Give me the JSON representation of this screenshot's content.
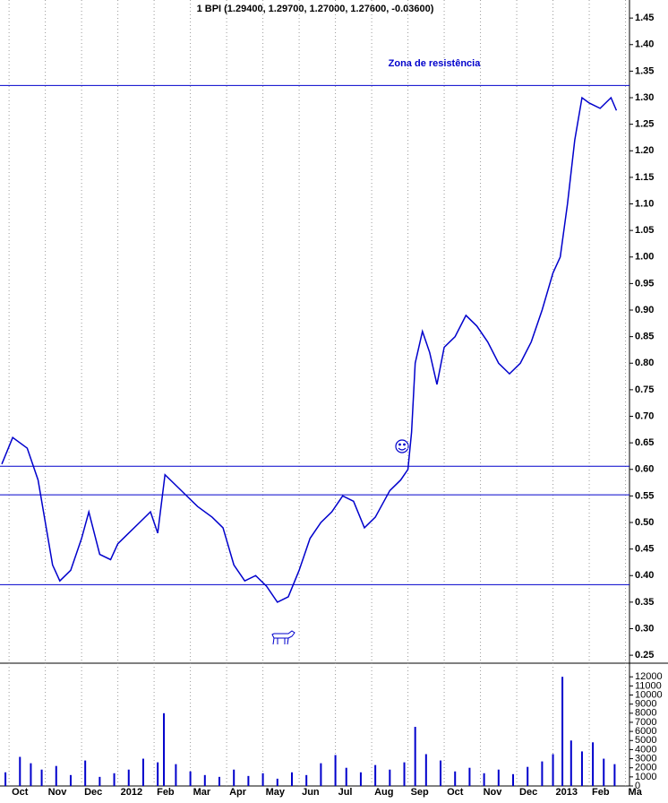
{
  "chart_data": [
    {
      "type": "line",
      "title": "1 BPI (1.29400, 1.29700, 1.27000, 1.27600, -0.03600)",
      "annotations": [
        "Zona de resistência"
      ],
      "x": [
        -0.2,
        0.1,
        0.5,
        0.8,
        1.0,
        1.2,
        1.4,
        1.7,
        2.0,
        2.2,
        2.5,
        2.8,
        3.0,
        3.3,
        3.6,
        3.9,
        4.1,
        4.3,
        4.6,
        4.9,
        5.2,
        5.6,
        5.9,
        6.2,
        6.5,
        6.8,
        7.1,
        7.4,
        7.7,
        8.0,
        8.3,
        8.6,
        8.9,
        9.2,
        9.5,
        9.8,
        10.1,
        10.5,
        10.8,
        11.0,
        11.1,
        11.2,
        11.4,
        11.6,
        11.8,
        12.0,
        12.3,
        12.6,
        12.9,
        13.2,
        13.5,
        13.8,
        14.1,
        14.4,
        14.7,
        15.0,
        15.2,
        15.4,
        15.6,
        15.8,
        16.0,
        16.3,
        16.6,
        16.75
      ],
      "series": [
        {
          "color": "#0000cc",
          "values": [
            0.61,
            0.66,
            0.64,
            0.58,
            0.5,
            0.42,
            0.39,
            0.41,
            0.47,
            0.52,
            0.44,
            0.43,
            0.46,
            0.48,
            0.5,
            0.52,
            0.48,
            0.59,
            0.57,
            0.55,
            0.53,
            0.51,
            0.49,
            0.42,
            0.39,
            0.4,
            0.38,
            0.35,
            0.36,
            0.41,
            0.47,
            0.5,
            0.52,
            0.55,
            0.54,
            0.49,
            0.51,
            0.56,
            0.58,
            0.6,
            0.67,
            0.8,
            0.86,
            0.82,
            0.76,
            0.83,
            0.85,
            0.89,
            0.87,
            0.84,
            0.8,
            0.78,
            0.8,
            0.84,
            0.9,
            0.97,
            1.0,
            1.1,
            1.22,
            1.3,
            1.29,
            1.28,
            1.3,
            1.276
          ]
        }
      ],
      "hlines": [
        1.323,
        0.606,
        0.552,
        0.383
      ],
      "hline_color": "#0000cc",
      "xlim": [
        -0.25,
        17.11
      ],
      "xticks": [
        {
          "value": 0,
          "label": "Oct"
        },
        {
          "value": 1,
          "label": "Nov"
        },
        {
          "value": 2,
          "label": "Dec"
        },
        {
          "value": 3,
          "label": "2012"
        },
        {
          "value": 4,
          "label": "Feb"
        },
        {
          "value": 5,
          "label": "Mar"
        },
        {
          "value": 6,
          "label": "Apr"
        },
        {
          "value": 7,
          "label": "May"
        },
        {
          "value": 8,
          "label": "Jun"
        },
        {
          "value": 9,
          "label": "Jul"
        },
        {
          "value": 10,
          "label": "Aug"
        },
        {
          "value": 11,
          "label": "Sep"
        },
        {
          "value": 12,
          "label": "Oct"
        },
        {
          "value": 13,
          "label": "Nov"
        },
        {
          "value": 14,
          "label": "Dec"
        },
        {
          "value": 15,
          "label": "2013"
        },
        {
          "value": 16,
          "label": "Feb"
        },
        {
          "value": 17,
          "label": "Ma"
        }
      ],
      "ylim": [
        0.235,
        1.484
      ],
      "yticks": [
        {
          "value": 0.25,
          "label": "0.25"
        },
        {
          "value": 0.3,
          "label": "0.30"
        },
        {
          "value": 0.35,
          "label": "0.35"
        },
        {
          "value": 0.4,
          "label": "0.40"
        },
        {
          "value": 0.45,
          "label": "0.45"
        },
        {
          "value": 0.5,
          "label": "0.50"
        },
        {
          "value": 0.55,
          "label": "0.55"
        },
        {
          "value": 0.6,
          "label": "0.60"
        },
        {
          "value": 0.65,
          "label": "0.65"
        },
        {
          "value": 0.7,
          "label": "0.70"
        },
        {
          "value": 0.75,
          "label": "0.75"
        },
        {
          "value": 0.8,
          "label": "0.80"
        },
        {
          "value": 0.85,
          "label": "0.85"
        },
        {
          "value": 0.9,
          "label": "0.90"
        },
        {
          "value": 0.95,
          "label": "0.95"
        },
        {
          "value": 1.0,
          "label": "1.00"
        },
        {
          "value": 1.05,
          "label": "1.05"
        },
        {
          "value": 1.1,
          "label": "1.10"
        },
        {
          "value": 1.15,
          "label": "1.15"
        },
        {
          "value": 1.2,
          "label": "1.20"
        },
        {
          "value": 1.25,
          "label": "1.25"
        },
        {
          "value": 1.3,
          "label": "1.30"
        },
        {
          "value": 1.35,
          "label": "1.35"
        },
        {
          "value": 1.4,
          "label": "1.40"
        },
        {
          "value": 1.45,
          "label": "1.45"
        }
      ],
      "grid": true
    },
    {
      "type": "bar",
      "x": [
        -0.1,
        0.3,
        0.6,
        0.9,
        1.3,
        1.7,
        2.1,
        2.5,
        2.9,
        3.3,
        3.7,
        4.1,
        4.27,
        4.6,
        5.0,
        5.4,
        5.8,
        6.2,
        6.6,
        7.0,
        7.4,
        7.8,
        8.2,
        8.6,
        9.0,
        9.3,
        9.7,
        10.1,
        10.5,
        10.9,
        11.2,
        11.5,
        11.9,
        12.3,
        12.7,
        13.1,
        13.5,
        13.9,
        14.3,
        14.7,
        15.0,
        15.26,
        15.5,
        15.8,
        16.1,
        16.4,
        16.7
      ],
      "series": [
        {
          "color": "#0000cc",
          "values": [
            1500,
            3200,
            2500,
            1800,
            2200,
            1200,
            2800,
            1000,
            1400,
            1800,
            3000,
            2600,
            8000,
            2400,
            1600,
            1200,
            1000,
            1800,
            1100,
            1400,
            800,
            1500,
            1200,
            2500,
            3400,
            2000,
            1500,
            2300,
            1800,
            2600,
            6500,
            3500,
            2800,
            1600,
            2000,
            1400,
            1800,
            1300,
            2100,
            2700,
            3500,
            12000,
            5000,
            3800,
            4800,
            3000,
            2400
          ]
        }
      ],
      "xlim": [
        -0.25,
        17.11
      ],
      "ylim": [
        0,
        13500
      ],
      "yticks": [
        0,
        1000,
        2000,
        3000,
        4000,
        5000,
        6000,
        7000,
        8000,
        9000,
        10000,
        11000,
        12000
      ]
    }
  ]
}
